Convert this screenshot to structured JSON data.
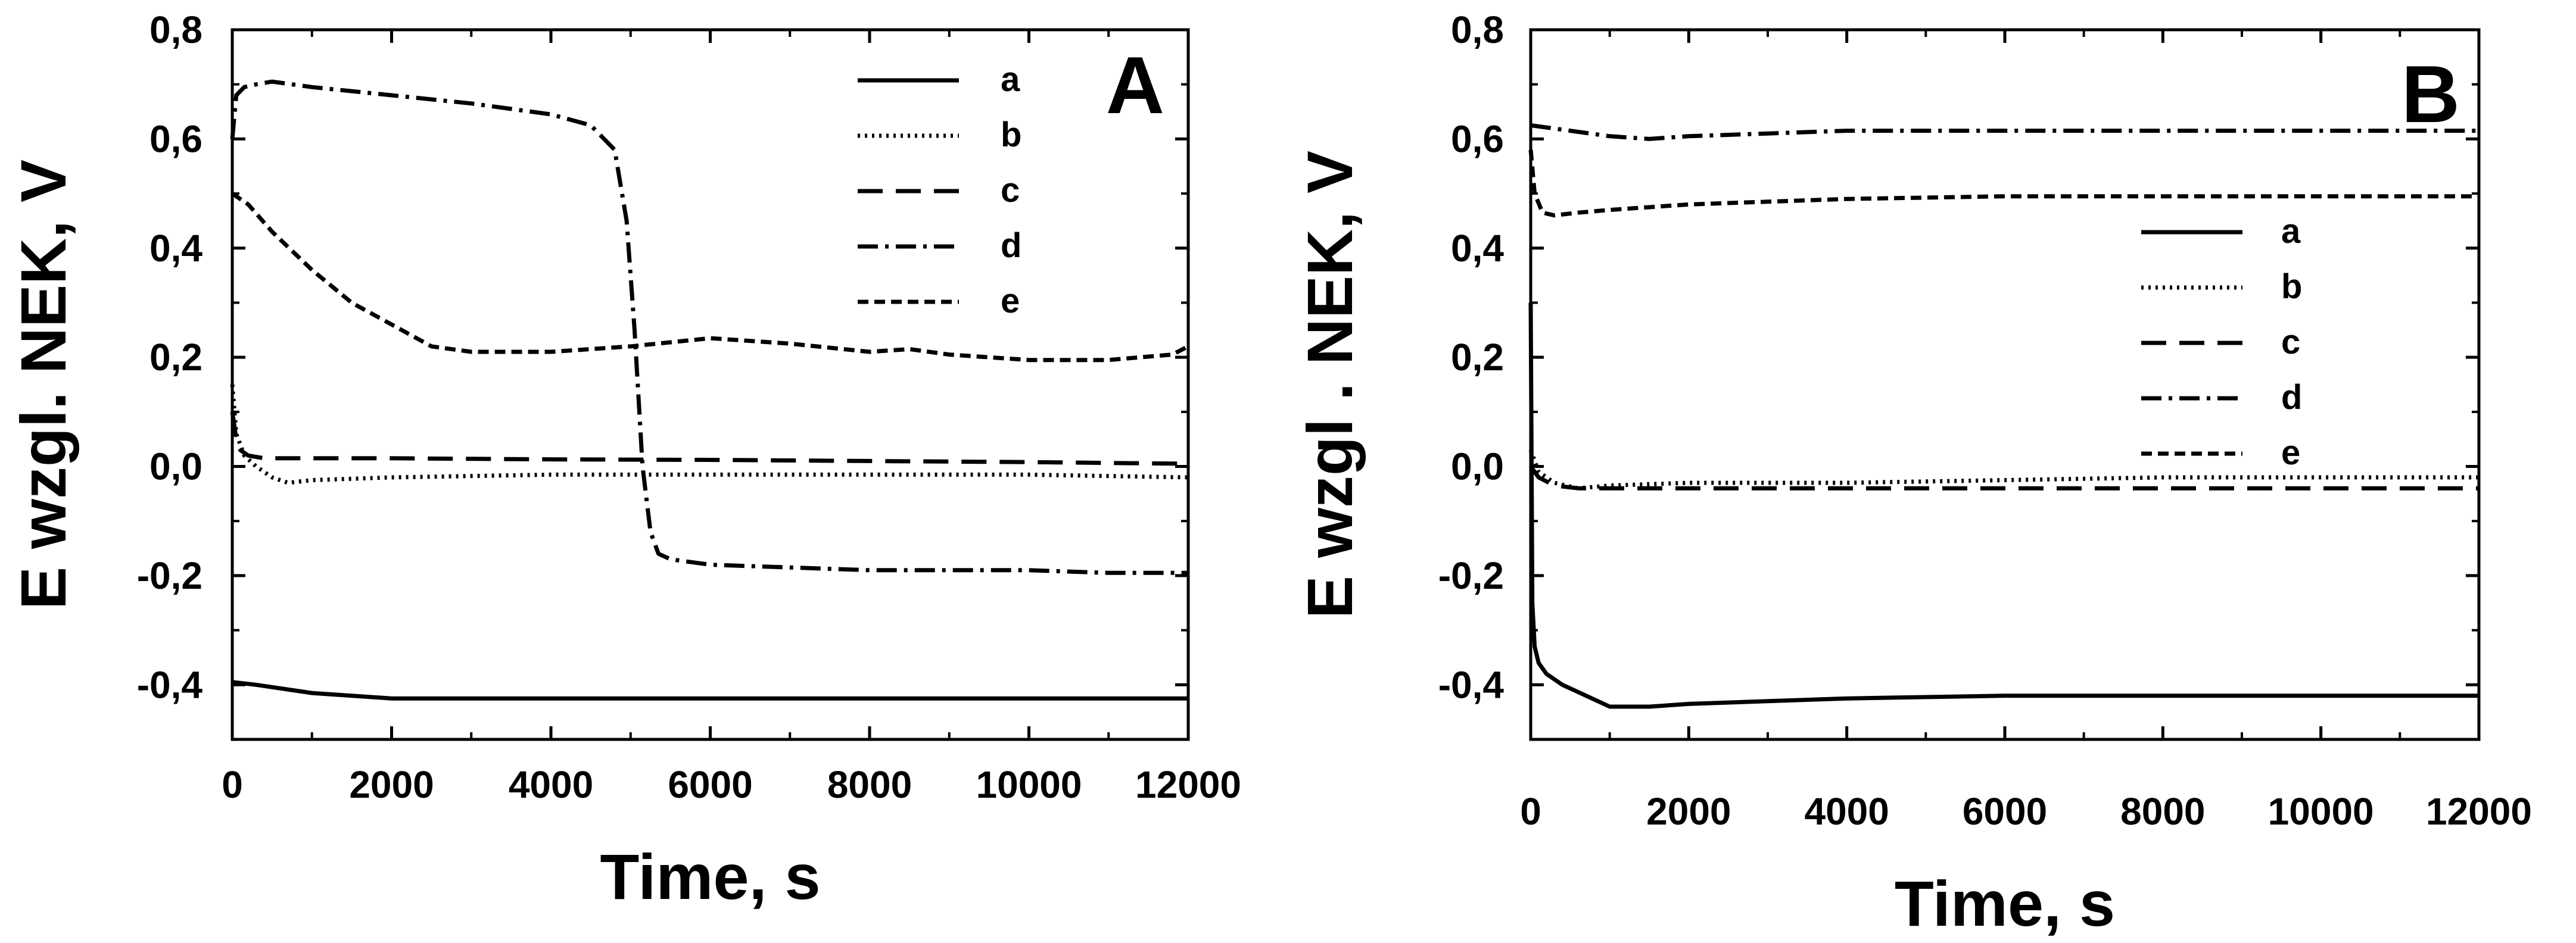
{
  "chart_data": [
    {
      "type": "line",
      "panel_label": "A",
      "xlabel": "Time, s",
      "ylabel": "E wzgl. NEK, V",
      "xlim": [
        0,
        12000
      ],
      "ylim": [
        -0.5,
        0.8
      ],
      "xticks": [
        0,
        2000,
        4000,
        6000,
        8000,
        10000,
        12000
      ],
      "xtick_labels": [
        "0",
        "2000",
        "4000",
        "6000",
        "8000",
        "10000",
        "12000"
      ],
      "yticks": [
        -0.4,
        -0.2,
        0.0,
        0.2,
        0.4,
        0.6,
        0.8
      ],
      "ytick_labels": [
        "-0,4",
        "-0,2",
        "0,0",
        "0,2",
        "0,4",
        "0,6",
        "0,8"
      ],
      "grid": false,
      "legend": "top-right",
      "series": [
        {
          "name": "a",
          "style": "solid",
          "x": [
            0,
            300,
            1000,
            2000,
            3000,
            4000,
            6000,
            8000,
            10000,
            12000
          ],
          "y": [
            -0.395,
            -0.4,
            -0.415,
            -0.425,
            -0.425,
            -0.425,
            -0.425,
            -0.425,
            -0.425,
            -0.425
          ]
        },
        {
          "name": "b",
          "style": "dotted",
          "x": [
            0,
            50,
            150,
            300,
            500,
            700,
            1000,
            2000,
            4000,
            6000,
            8000,
            10000,
            12000
          ],
          "y": [
            0.15,
            0.06,
            0.02,
            0.0,
            -0.02,
            -0.03,
            -0.025,
            -0.02,
            -0.015,
            -0.015,
            -0.015,
            -0.015,
            -0.02
          ]
        },
        {
          "name": "c",
          "style": "dashed",
          "x": [
            0,
            50,
            100,
            200,
            400,
            1000,
            2000,
            4000,
            6000,
            8000,
            10000,
            12000
          ],
          "y": [
            0.1,
            0.05,
            0.03,
            0.02,
            0.015,
            0.015,
            0.015,
            0.013,
            0.012,
            0.01,
            0.008,
            0.005
          ]
        },
        {
          "name": "d",
          "style": "dashdot",
          "x": [
            0,
            50,
            150,
            300,
            500,
            1000,
            2000,
            3000,
            4000,
            4500,
            4800,
            4950,
            5050,
            5150,
            5250,
            5350,
            5500,
            6000,
            7000,
            8000,
            9000,
            10000,
            11000,
            12000
          ],
          "y": [
            0.6,
            0.68,
            0.695,
            0.7,
            0.705,
            0.695,
            0.68,
            0.665,
            0.645,
            0.625,
            0.58,
            0.45,
            0.25,
            0.0,
            -0.12,
            -0.16,
            -0.17,
            -0.18,
            -0.185,
            -0.19,
            -0.19,
            -0.19,
            -0.195,
            -0.195
          ]
        },
        {
          "name": "e",
          "style": "shortdash",
          "x": [
            0,
            200,
            500,
            1000,
            1500,
            2000,
            2500,
            3000,
            4000,
            5000,
            6000,
            7000,
            8000,
            8500,
            9000,
            10000,
            11000,
            11800,
            12000
          ],
          "y": [
            0.5,
            0.48,
            0.43,
            0.36,
            0.3,
            0.26,
            0.22,
            0.21,
            0.21,
            0.22,
            0.235,
            0.225,
            0.21,
            0.215,
            0.205,
            0.195,
            0.195,
            0.205,
            0.22
          ]
        }
      ]
    },
    {
      "type": "line",
      "panel_label": "B",
      "xlabel": "Time, s",
      "ylabel": "E wzgl . NEK, V",
      "xlim": [
        0,
        12000
      ],
      "ylim": [
        -0.5,
        0.8
      ],
      "xticks": [
        0,
        2000,
        4000,
        6000,
        8000,
        10000,
        12000
      ],
      "xtick_labels": [
        "0",
        "2000",
        "4000",
        "6000",
        "8000",
        "10000",
        "12000"
      ],
      "yticks": [
        -0.4,
        -0.2,
        0.0,
        0.2,
        0.4,
        0.6,
        0.8
      ],
      "ytick_labels": [
        "-0,4",
        "-0,2",
        "0,0",
        "0,2",
        "0,4",
        "0,6",
        "0,8"
      ],
      "grid": false,
      "legend": "right",
      "series": [
        {
          "name": "a",
          "style": "solid",
          "x": [
            0,
            20,
            50,
            100,
            200,
            400,
            700,
            1000,
            1500,
            2000,
            3000,
            4000,
            6000,
            8000,
            10000,
            12000
          ],
          "y": [
            0.3,
            -0.25,
            -0.33,
            -0.36,
            -0.38,
            -0.4,
            -0.42,
            -0.44,
            -0.44,
            -0.435,
            -0.43,
            -0.425,
            -0.42,
            -0.42,
            -0.42,
            -0.42
          ]
        },
        {
          "name": "b",
          "style": "dotted",
          "x": [
            0,
            100,
            300,
            600,
            1000,
            2000,
            4000,
            6000,
            8000,
            10000,
            12000
          ],
          "y": [
            0.03,
            -0.01,
            -0.03,
            -0.04,
            -0.035,
            -0.03,
            -0.03,
            -0.025,
            -0.02,
            -0.02,
            -0.02
          ]
        },
        {
          "name": "c",
          "style": "dashed",
          "x": [
            0,
            100,
            300,
            600,
            1000,
            2000,
            4000,
            6000,
            8000,
            10000,
            12000
          ],
          "y": [
            0.0,
            -0.02,
            -0.035,
            -0.04,
            -0.04,
            -0.04,
            -0.04,
            -0.04,
            -0.04,
            -0.04,
            -0.04
          ]
        },
        {
          "name": "d",
          "style": "dashdot",
          "x": [
            0,
            500,
            1000,
            1500,
            2000,
            3000,
            4000,
            5000,
            6000,
            8000,
            10000,
            12000
          ],
          "y": [
            0.625,
            0.615,
            0.605,
            0.6,
            0.605,
            0.61,
            0.615,
            0.615,
            0.615,
            0.615,
            0.615,
            0.615
          ]
        },
        {
          "name": "e",
          "style": "shortdash",
          "x": [
            0,
            50,
            150,
            300,
            600,
            1000,
            2000,
            3000,
            4000,
            6000,
            8000,
            10000,
            12000
          ],
          "y": [
            0.58,
            0.5,
            0.465,
            0.46,
            0.465,
            0.47,
            0.48,
            0.485,
            0.49,
            0.495,
            0.495,
            0.495,
            0.495
          ]
        }
      ]
    }
  ]
}
